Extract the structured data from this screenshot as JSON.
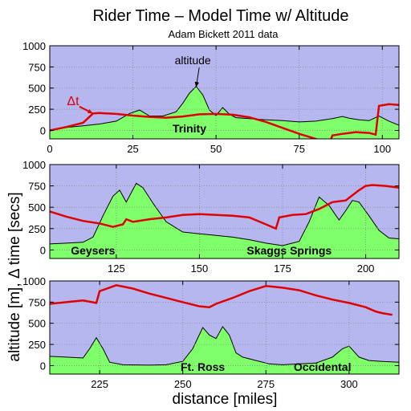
{
  "title": "Rider Time – Model Time w/ Altitude",
  "subtitle": "Adam Bickett 2011 data",
  "xlabel": "distance [miles]",
  "ylabel": "altitude [m], Δ time [secs]",
  "colors": {
    "background": "#b7b7ef",
    "altitude_fill": "#7fff6a",
    "altitude_line": "#000000",
    "dt_line": "#e00000",
    "grid": "#888888"
  },
  "chart_data": [
    {
      "type": "area",
      "panel": 1,
      "xlim": [
        0,
        105
      ],
      "ylim": [
        -100,
        1000
      ],
      "xticks": [
        0,
        25,
        50,
        75,
        100
      ],
      "yticks": [
        0,
        250,
        500,
        750,
        1000
      ],
      "grid": true,
      "place_labels": [
        {
          "text": "Trinity",
          "x": 42,
          "y": -25
        }
      ],
      "annotations": [
        {
          "text": "altitude",
          "x": 43,
          "y": 780,
          "points_to": [
            44,
            510
          ]
        },
        {
          "text": "Δt",
          "x": 7,
          "y": 300,
          "points_to": [
            13,
            200
          ],
          "color": "#e00000"
        }
      ],
      "series": [
        {
          "name": "altitude",
          "x": [
            0,
            5,
            10,
            15,
            20,
            24,
            27,
            30,
            34,
            38,
            40,
            42,
            44,
            46,
            48,
            50,
            52,
            54,
            56,
            60,
            65,
            70,
            75,
            80,
            85,
            88,
            90,
            93,
            96,
            99,
            102,
            105
          ],
          "y": [
            0,
            35,
            55,
            75,
            110,
            200,
            240,
            170,
            170,
            220,
            320,
            440,
            520,
            420,
            240,
            175,
            270,
            190,
            150,
            140,
            125,
            115,
            100,
            110,
            140,
            165,
            145,
            125,
            115,
            170,
            110,
            60
          ]
        },
        {
          "name": "Δt",
          "x": [
            0,
            5,
            10,
            13,
            15,
            20,
            25,
            30,
            35,
            40,
            45,
            50,
            55,
            60,
            65,
            70,
            75,
            80,
            84,
            85,
            88,
            92,
            96,
            98,
            99,
            102,
            105
          ],
          "y": [
            0,
            40,
            90,
            200,
            205,
            195,
            175,
            160,
            150,
            165,
            190,
            195,
            185,
            155,
            100,
            30,
            -40,
            -100,
            -160,
            -60,
            -40,
            -20,
            -30,
            -50,
            290,
            310,
            300
          ]
        }
      ]
    },
    {
      "type": "area",
      "panel": 2,
      "xlim": [
        105,
        210
      ],
      "ylim": [
        -100,
        1000
      ],
      "xticks": [
        125,
        150,
        175,
        200
      ],
      "yticks": [
        0,
        250,
        500,
        750,
        1000
      ],
      "grid": true,
      "place_labels": [
        {
          "text": "Geysers",
          "x": 118,
          "y": -55
        },
        {
          "text": "Skaggs Springs",
          "x": 177,
          "y": -55
        }
      ],
      "series": [
        {
          "name": "altitude",
          "x": [
            105,
            110,
            115,
            118,
            121,
            124,
            126,
            128,
            131,
            133,
            136,
            140,
            145,
            150,
            155,
            160,
            165,
            170,
            175,
            180,
            183,
            186,
            189,
            192,
            194,
            196,
            198,
            201,
            204,
            207,
            210
          ],
          "y": [
            70,
            80,
            90,
            150,
            400,
            630,
            700,
            560,
            780,
            730,
            550,
            330,
            210,
            190,
            170,
            150,
            120,
            80,
            50,
            100,
            330,
            620,
            520,
            350,
            460,
            580,
            560,
            400,
            230,
            140,
            130
          ]
        },
        {
          "name": "Δt",
          "x": [
            105,
            110,
            115,
            120,
            124,
            127,
            128,
            130,
            135,
            140,
            145,
            150,
            155,
            160,
            165,
            170,
            173,
            174,
            178,
            182,
            186,
            190,
            194,
            196,
            198,
            200,
            202,
            206,
            210
          ],
          "y": [
            450,
            390,
            340,
            310,
            270,
            300,
            360,
            330,
            360,
            380,
            410,
            420,
            410,
            400,
            380,
            300,
            250,
            380,
            410,
            420,
            480,
            560,
            580,
            640,
            700,
            750,
            760,
            750,
            730
          ]
        }
      ]
    },
    {
      "type": "area",
      "panel": 3,
      "xlim": [
        210,
        315
      ],
      "ylim": [
        -100,
        1000
      ],
      "xticks": [
        225,
        250,
        275,
        300
      ],
      "yticks": [
        0,
        250,
        500,
        750,
        1000
      ],
      "grid": true,
      "place_labels": [
        {
          "text": "Ft. Ross",
          "x": 256,
          "y": -60
        },
        {
          "text": "Occidental",
          "x": 292,
          "y": -60
        }
      ],
      "series": [
        {
          "name": "altitude",
          "x": [
            210,
            215,
            220,
            222,
            224,
            226,
            228,
            232,
            240,
            245,
            250,
            253,
            256,
            258,
            260,
            262,
            264,
            266,
            268,
            272,
            276,
            280,
            285,
            290,
            295,
            298,
            300,
            303,
            306,
            310,
            315
          ],
          "y": [
            110,
            100,
            90,
            200,
            330,
            200,
            40,
            10,
            5,
            10,
            50,
            200,
            450,
            360,
            320,
            460,
            360,
            150,
            100,
            60,
            20,
            10,
            20,
            30,
            100,
            200,
            230,
            100,
            60,
            50,
            40
          ]
        },
        {
          "name": "Δt",
          "x": [
            210,
            215,
            220,
            224,
            225,
            230,
            235,
            240,
            245,
            250,
            255,
            258,
            260,
            265,
            270,
            275,
            280,
            285,
            290,
            295,
            300,
            305,
            308,
            310,
            313
          ],
          "y": [
            730,
            750,
            770,
            740,
            880,
            950,
            910,
            850,
            800,
            750,
            700,
            690,
            730,
            800,
            880,
            940,
            920,
            890,
            830,
            780,
            740,
            690,
            640,
            620,
            600
          ]
        }
      ]
    }
  ]
}
